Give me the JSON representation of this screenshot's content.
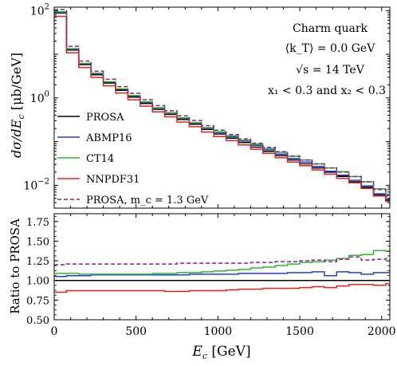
{
  "chart_data": [
    {
      "type": "line",
      "step": true,
      "panel": "main",
      "ylabel": "dσ/dE_c [μb/GeV]",
      "yscale": "log",
      "ylim": [
        0.003,
        120
      ],
      "xlim": [
        0,
        2050
      ],
      "yticks": [
        {
          "value": 0.01,
          "label": "10",
          "exp": "−2"
        },
        {
          "value": 1,
          "label": "10",
          "exp": "0"
        },
        {
          "value": 100,
          "label": "10",
          "exp": "2"
        }
      ],
      "annotations": [
        "Charm quark",
        "⟨k_T⟩ = 0.0 GeV",
        "√s = 14 TeV",
        "x₁ < 0.3 and x₂ < 0.3"
      ],
      "legend_placement": "left",
      "grid": false,
      "bin_edges": [
        0,
        75,
        150,
        225,
        300,
        375,
        450,
        525,
        600,
        675,
        750,
        825,
        900,
        975,
        1050,
        1125,
        1200,
        1275,
        1350,
        1425,
        1500,
        1575,
        1650,
        1725,
        1800,
        1875,
        1950,
        2025,
        2050
      ],
      "series": [
        {
          "name": "PROSA",
          "color": "#000000",
          "dash": false,
          "values": [
            88,
            12.5,
            5.8,
            3.4,
            2.2,
            1.5,
            1.05,
            0.75,
            0.55,
            0.42,
            0.32,
            0.25,
            0.19,
            0.15,
            0.12,
            0.095,
            0.075,
            0.06,
            0.048,
            0.038,
            0.031,
            0.025,
            0.02,
            0.016,
            0.012,
            0.009,
            0.006,
            0.0045
          ]
        },
        {
          "name": "ABMP16",
          "color": "#1f3fd6",
          "dash": false,
          "values": [
            91,
            13.1,
            6.1,
            3.6,
            2.33,
            1.59,
            1.12,
            0.8,
            0.59,
            0.45,
            0.344,
            0.269,
            0.205,
            0.162,
            0.13,
            0.103,
            0.082,
            0.065,
            0.052,
            0.041,
            0.034,
            0.027,
            0.021,
            0.017,
            0.013,
            0.0097,
            0.0064,
            0.0048
          ]
        },
        {
          "name": "CT14",
          "color": "#2fb52f",
          "dash": false,
          "values": [
            94,
            13.5,
            6.2,
            3.7,
            2.35,
            1.62,
            1.14,
            0.82,
            0.6,
            0.46,
            0.35,
            0.275,
            0.21,
            0.168,
            0.136,
            0.108,
            0.087,
            0.07,
            0.057,
            0.046,
            0.038,
            0.031,
            0.025,
            0.0205,
            0.0158,
            0.012,
            0.0083,
            0.0062
          ]
        },
        {
          "name": "NNPDF31",
          "color": "#e8201a",
          "dash": false,
          "values": [
            74,
            10.8,
            5,
            2.95,
            1.9,
            1.3,
            0.91,
            0.65,
            0.48,
            0.37,
            0.28,
            0.22,
            0.166,
            0.131,
            0.106,
            0.084,
            0.067,
            0.054,
            0.043,
            0.034,
            0.028,
            0.0225,
            0.018,
            0.0144,
            0.0114,
            0.0085,
            0.0057,
            0.0043
          ]
        },
        {
          "name": "PROSA,  m_c = 1.3 GeV",
          "color": "#8b1f8f",
          "dash": true,
          "values": [
            106,
            15.2,
            7,
            4.1,
            2.68,
            1.82,
            1.28,
            0.91,
            0.67,
            0.51,
            0.39,
            0.305,
            0.232,
            0.183,
            0.146,
            0.116,
            0.092,
            0.074,
            0.059,
            0.047,
            0.038,
            0.031,
            0.025,
            0.02,
            0.016,
            0.012,
            0.008,
            0.0057
          ]
        }
      ]
    },
    {
      "type": "line",
      "step": true,
      "panel": "ratio",
      "xlabel": "E_c [GeV]",
      "ylabel": "Ratio to PROSA",
      "ylim": [
        0.5,
        1.85
      ],
      "xlim": [
        0,
        2050
      ],
      "xticks": [
        0,
        500,
        1000,
        1500,
        2000
      ],
      "yticks": [
        {
          "value": 0.5,
          "label": "0.50"
        },
        {
          "value": 0.75,
          "label": "0.75"
        },
        {
          "value": 1.0,
          "label": "1.00"
        },
        {
          "value": 1.25,
          "label": "1.25"
        },
        {
          "value": 1.5,
          "label": "1.50"
        },
        {
          "value": 1.75,
          "label": "1.75"
        }
      ],
      "bin_edges": [
        0,
        75,
        150,
        225,
        300,
        375,
        450,
        525,
        600,
        675,
        750,
        825,
        900,
        975,
        1050,
        1125,
        1200,
        1275,
        1350,
        1425,
        1500,
        1575,
        1650,
        1725,
        1800,
        1875,
        1950,
        2025,
        2050
      ],
      "series": [
        {
          "color": "#000000",
          "dash": false,
          "values": [
            1,
            1,
            1,
            1,
            1,
            1,
            1,
            1,
            1,
            1,
            1,
            1,
            1,
            1,
            1,
            1,
            1,
            1,
            1,
            1,
            1,
            1,
            1,
            1,
            1,
            1,
            1,
            1
          ]
        },
        {
          "color": "#1f3fd6",
          "dash": false,
          "values": [
            1.05,
            1.06,
            1.06,
            1.07,
            1.07,
            1.07,
            1.07,
            1.07,
            1.07,
            1.07,
            1.07,
            1.08,
            1.08,
            1.08,
            1.08,
            1.09,
            1.09,
            1.09,
            1.09,
            1.1,
            1.1,
            1.11,
            1.06,
            1.11,
            1.1,
            1.08,
            1.1,
            1.1
          ]
        },
        {
          "color": "#2fb52f",
          "dash": false,
          "values": [
            1.09,
            1.09,
            1.08,
            1.08,
            1.08,
            1.08,
            1.08,
            1.08,
            1.09,
            1.09,
            1.1,
            1.1,
            1.11,
            1.12,
            1.13,
            1.14,
            1.16,
            1.17,
            1.19,
            1.21,
            1.23,
            1.24,
            1.26,
            1.28,
            1.32,
            1.33,
            1.38,
            1.37
          ]
        },
        {
          "color": "#e8201a",
          "dash": false,
          "values": [
            0.85,
            0.87,
            0.87,
            0.87,
            0.87,
            0.87,
            0.87,
            0.87,
            0.87,
            0.86,
            0.86,
            0.87,
            0.87,
            0.87,
            0.88,
            0.89,
            0.89,
            0.9,
            0.9,
            0.9,
            0.91,
            0.92,
            0.91,
            0.93,
            0.95,
            0.95,
            0.94,
            0.96
          ]
        },
        {
          "color": "#8b1f8f",
          "dash": true,
          "values": [
            1.2,
            1.21,
            1.21,
            1.21,
            1.21,
            1.21,
            1.21,
            1.21,
            1.21,
            1.21,
            1.22,
            1.22,
            1.22,
            1.22,
            1.22,
            1.22,
            1.23,
            1.23,
            1.24,
            1.24,
            1.25,
            1.26,
            1.24,
            1.27,
            1.3,
            1.26,
            1.27,
            1.28
          ]
        }
      ]
    }
  ],
  "labels": {
    "main_ylabel": "dσ/dE",
    "main_ylabel_sub": "c",
    "main_ylabel_unit": " [μb/GeV]",
    "ratio_ylabel": "Ratio to PROSA",
    "xlabel_main": "E",
    "xlabel_sub": "c",
    "xlabel_unit": " [GeV]"
  }
}
